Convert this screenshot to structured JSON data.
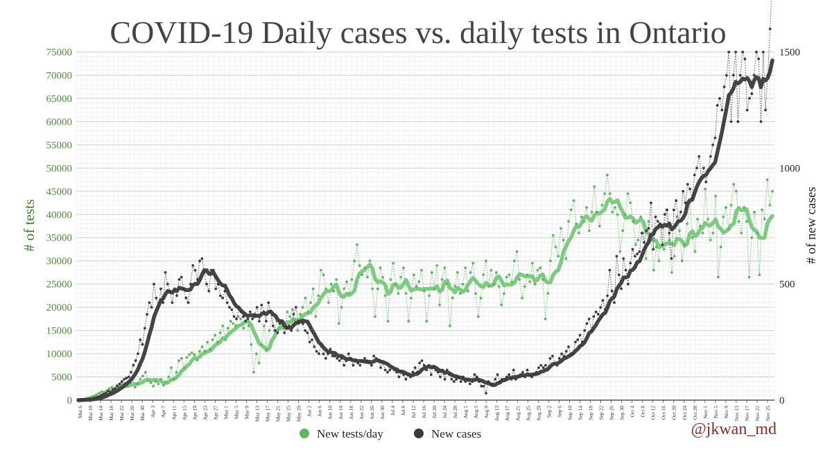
{
  "chart_data": {
    "type": "line",
    "title": "COVID-19 Daily cases vs. daily tests in Ontario",
    "ylabel": "# of tests",
    "y2label": "# of new cases",
    "ylim": [
      0,
      75000
    ],
    "y2lim": [
      0,
      1500
    ],
    "yticks": [
      "0",
      "5000",
      "10000",
      "15000",
      "20000",
      "25000",
      "30000",
      "35000",
      "40000",
      "45000",
      "50000",
      "55000",
      "60000",
      "65000",
      "70000",
      "75000"
    ],
    "y2ticks": [
      "0",
      "500",
      "1000",
      "1500"
    ],
    "xticks": [
      "Mar 6",
      "Mar 10",
      "Mar 14",
      "Mar 18",
      "Mar 22",
      "Mar 26",
      "Mar 30",
      "Apr 3",
      "Apr 7",
      "Apr 11",
      "Apr 15",
      "Apr 19",
      "Apr 23",
      "Apr 27",
      "May 1",
      "May 5",
      "May 9",
      "May 13",
      "May 17",
      "May 21",
      "May 25",
      "May 29",
      "Jun 2",
      "Jun 6",
      "Jun 10",
      "Jun 14",
      "Jun 18",
      "Jun 22",
      "Jun 26",
      "Jun 30",
      "Jul 4",
      "Jul 8",
      "Jul 12",
      "Jul 16",
      "Jul 20",
      "Jul 24",
      "Jul 28",
      "Aug 1",
      "Aug 5",
      "Aug 9",
      "Aug 13",
      "Aug 17",
      "Aug 21",
      "Aug 25",
      "Aug 29",
      "Sep 2",
      "Sep 6",
      "Sep 10",
      "Sep 14",
      "Sep 18",
      "Sep 22",
      "Sep 26",
      "Sep 30",
      "Oct 4",
      "Oct 8",
      "Oct 12",
      "Oct 16",
      "Oct 20",
      "Oct 24",
      "Oct 28",
      "Nov 1",
      "Nov 5",
      "Nov 9",
      "Nov 13",
      "Nov 17",
      "Nov 21",
      "Nov 25"
    ],
    "grid": true,
    "legend_position": "bottom-center",
    "series": [
      {
        "name": "New tests/day",
        "axis": "left",
        "color": "#5cb85c",
        "smooth_color": "#7ccb80",
        "daily": [
          0,
          0,
          200,
          400,
          500,
          700,
          900,
          1200,
          1500,
          1800,
          1700,
          2000,
          2500,
          2800,
          2500,
          3200,
          3000,
          3400,
          3600,
          3000,
          3800,
          4500,
          2800,
          3500,
          4500,
          5200,
          6000,
          4200,
          3800,
          3000,
          4000,
          3500,
          4500,
          3200,
          3900,
          5000,
          7000,
          4500,
          6000,
          8500,
          9000,
          7000,
          9200,
          9800,
          10200,
          9800,
          8600,
          10500,
          11500,
          10500,
          12500,
          11000,
          13000,
          14000,
          12500,
          14500,
          16000,
          13000,
          15500,
          17000,
          16500,
          16000,
          18000,
          17500,
          15500,
          18500,
          16000,
          12000,
          6000,
          10000,
          8000,
          12000,
          16000,
          11000,
          15000,
          18500,
          15000,
          17000,
          16500,
          16000,
          15500,
          19000,
          18000,
          19500,
          17000,
          15000,
          18500,
          20000,
          22000,
          19000,
          21000,
          24000,
          18000,
          22500,
          28000,
          27000,
          24000,
          21000,
          25000,
          23500,
          26000,
          16500,
          20000,
          24000,
          25500,
          23000,
          26000,
          30000,
          33500,
          29000,
          27000,
          28500,
          26500,
          30000,
          24000,
          18000,
          24000,
          28500,
          26500,
          22500,
          17000,
          26000,
          29500,
          25000,
          23000,
          26500,
          28500,
          23000,
          17000,
          22000,
          27000,
          24500,
          25500,
          28000,
          23500,
          17000,
          22500,
          27500,
          24000,
          29000,
          20500,
          26000,
          28500,
          25000,
          16000,
          22000,
          24500,
          27500,
          23000,
          25000,
          28500,
          23500,
          27500,
          29500,
          23000,
          18000,
          22000,
          27000,
          30000,
          24500,
          28000,
          25000,
          27500,
          24500,
          20500,
          23000,
          26500,
          27000,
          25500,
          30000,
          32000,
          26000,
          22000,
          24500,
          27000,
          25500,
          29500,
          25000,
          28000,
          28500,
          26000,
          17500,
          23000,
          30000,
          35500,
          33000,
          31000,
          37000,
          34500,
          30500,
          38500,
          41000,
          43000,
          38000,
          36000,
          39500,
          38500,
          41500,
          36500,
          40500,
          46000,
          40500,
          37500,
          42000,
          44500,
          48500,
          44500,
          40500,
          41500,
          40000,
          32000,
          36500,
          40000,
          44500,
          42500,
          38500,
          33500,
          34500,
          39500,
          36000,
          30500,
          38500,
          34500,
          28000,
          33000,
          30000,
          37500,
          32500,
          41000,
          34500,
          27500,
          31000,
          39500,
          36500,
          30000,
          33500,
          38000,
          42500,
          35000,
          32000,
          39000,
          37500,
          36000,
          45500,
          39000,
          34500,
          36000,
          44000,
          26500,
          33000,
          39500,
          41500,
          37000,
          42000,
          46500,
          45000,
          38500,
          36000,
          41500,
          38500,
          26500,
          35000,
          40500,
          36000,
          27000,
          41000,
          39000,
          47500,
          42000,
          45000
        ]
      },
      {
        "name": "New cases",
        "axis": "right",
        "color": "#3a3a3a",
        "smooth_color": "#444444",
        "daily": [
          0,
          1,
          2,
          2,
          3,
          5,
          6,
          10,
          12,
          15,
          20,
          25,
          30,
          40,
          35,
          45,
          50,
          60,
          70,
          80,
          90,
          95,
          100,
          120,
          150,
          170,
          200,
          260,
          240,
          310,
          370,
          420,
          400,
          500,
          440,
          400,
          480,
          420,
          550,
          500,
          470,
          420,
          480,
          450,
          520,
          530,
          480,
          440,
          420,
          500,
          580,
          560,
          520,
          600,
          610,
          550,
          500,
          470,
          560,
          560,
          480,
          500,
          450,
          440,
          470,
          420,
          400,
          390,
          360,
          350,
          400,
          380,
          360,
          340,
          350,
          380,
          350,
          370,
          400,
          340,
          410,
          380,
          340,
          420,
          380,
          320,
          300,
          290,
          330,
          340,
          290,
          310,
          320,
          300,
          370,
          400,
          340,
          340,
          330,
          300,
          290,
          250,
          260,
          230,
          210,
          200,
          240,
          200,
          180,
          200,
          220,
          190,
          190,
          180,
          170,
          180,
          150,
          170,
          200,
          180,
          150,
          170,
          160,
          150,
          170,
          180,
          170,
          160,
          150,
          190,
          180,
          170,
          140,
          160,
          130,
          120,
          130,
          140,
          130,
          120,
          100,
          120,
          110,
          90,
          110,
          100,
          120,
          140,
          120,
          160,
          170,
          150,
          130,
          150,
          110,
          140,
          130,
          120,
          100,
          130,
          90,
          130,
          110,
          90,
          80,
          90,
          100,
          80,
          100,
          80,
          90,
          70,
          80,
          110,
          100,
          80,
          60,
          60,
          30,
          80,
          70,
          70,
          90,
          110,
          80,
          90,
          90,
          100,
          110,
          90,
          130,
          90,
          100,
          110,
          120,
          100,
          130,
          110,
          100,
          110,
          120,
          140,
          150,
          140,
          150,
          130,
          180,
          190,
          160,
          150,
          180,
          200,
          190,
          210,
          230,
          200,
          200,
          250,
          260,
          280,
          250,
          300,
          330,
          350,
          300,
          360,
          380,
          370,
          400,
          430,
          390,
          450,
          560,
          470,
          420,
          620,
          540,
          480,
          610,
          560,
          500,
          590,
          650,
          620,
          630,
          640,
          720,
          680,
          730,
          740,
          850,
          650,
          790,
          770,
          760,
          670,
          800,
          820,
          720,
          610,
          820,
          860,
          770,
          810,
          900,
          850,
          930,
          910,
          870,
          970,
          1000,
          1050,
          960,
          1000,
          940,
          990,
          1050,
          1100,
          1130,
          1270,
          1300,
          1250,
          1350,
          1400,
          1500,
          1200,
          1400,
          1500,
          1200,
          1400,
          1500,
          1470,
          1250,
          1300,
          1320,
          1400,
          1500,
          1470,
          1200,
          1500,
          1250,
          1400,
          1600,
          1830
        ]
      }
    ]
  },
  "legend": {
    "tests_label": "New tests/day",
    "cases_label": "New cases"
  },
  "credit": "@jkwan_md"
}
